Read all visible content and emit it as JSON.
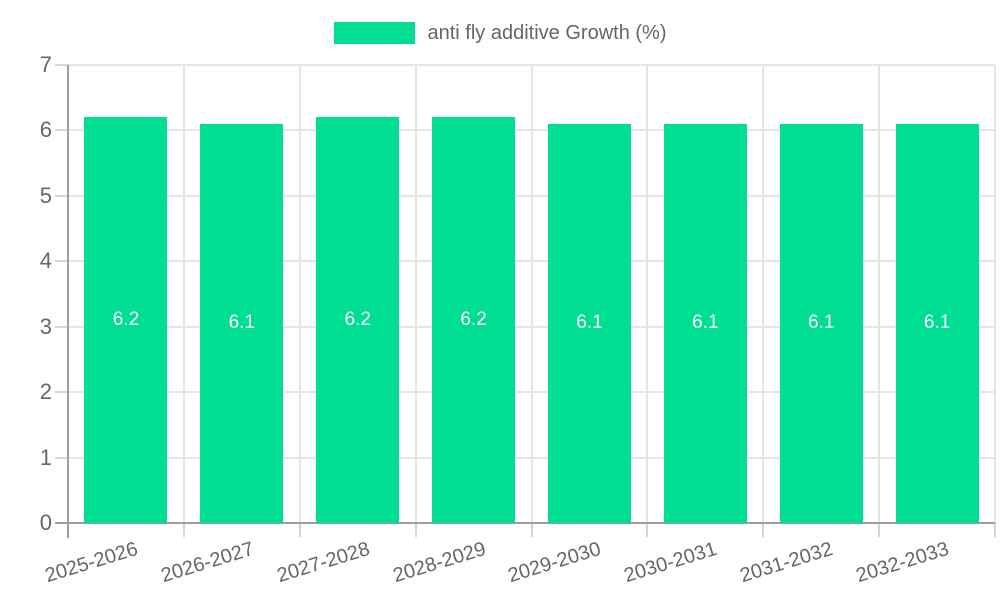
{
  "chart_data": {
    "type": "bar",
    "title": "anti fly additive Growth (%)",
    "legend": {
      "label": "anti fly additive Growth (%)",
      "position": "top"
    },
    "categories": [
      "2025-2026",
      "2026-2027",
      "2027-2028",
      "2028-2029",
      "2029-2030",
      "2030-2031",
      "2031-2032",
      "2032-2033"
    ],
    "series": [
      {
        "name": "anti fly additive Growth (%)",
        "values": [
          6.2,
          6.1,
          6.2,
          6.2,
          6.1,
          6.1,
          6.1,
          6.1
        ],
        "value_labels": [
          "6.2",
          "6.1",
          "6.2",
          "6.2",
          "6.1",
          "6.1",
          "6.1",
          "6.1"
        ]
      }
    ],
    "ylim": [
      0,
      7
    ],
    "yticks": [
      "0",
      "1",
      "2",
      "3",
      "4",
      "5",
      "6",
      "7"
    ],
    "grid": true,
    "colors": {
      "bar": "#00de94",
      "grid": "#e5e5e5",
      "tick_mark": "#d5d5d5",
      "axis": "#9e9e9e",
      "label_text": "#666666",
      "value_label_text": "#ffffff",
      "background": "#ffffff"
    }
  }
}
